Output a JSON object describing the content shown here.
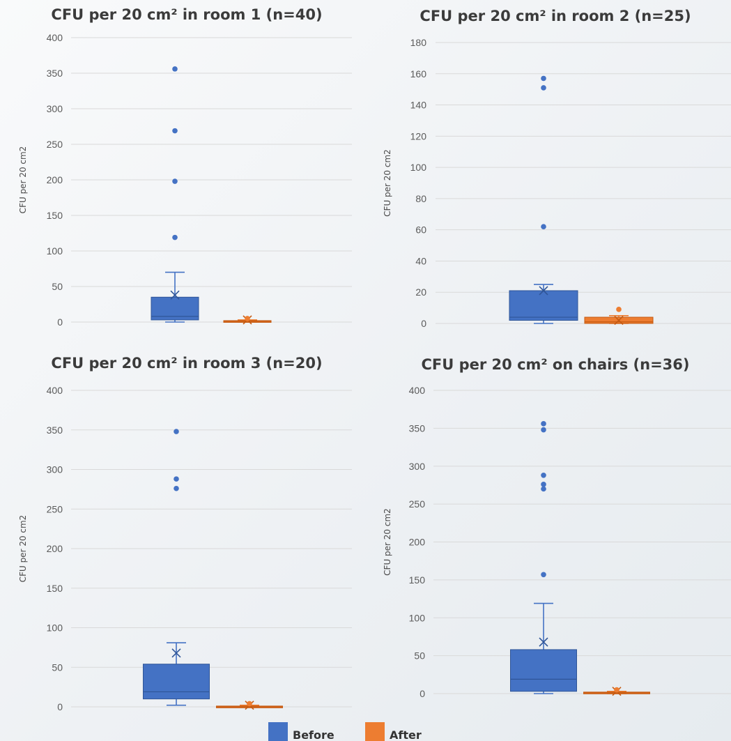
{
  "colors": {
    "before": "#4472C4",
    "after": "#ED7D31",
    "grid": "#d9d9d9",
    "outline_before": "#2F5597",
    "outline_after": "#C55A11"
  },
  "legend": {
    "before_label": "Before",
    "after_label": "After",
    "placement": "bottom-center"
  },
  "chart_data": [
    {
      "type": "box",
      "title": "CFU per 20 cm² in room 1 (n=40)",
      "ylabel": "CFU per 20 cm2",
      "ylim": [
        0,
        400
      ],
      "yticks": [
        0,
        50,
        100,
        150,
        200,
        250,
        300,
        350,
        400
      ],
      "grid": true,
      "series": [
        {
          "name": "Before",
          "min": 0,
          "q1": 3,
          "median": 8,
          "q3": 35,
          "whisker_high": 70,
          "mean": 38,
          "outliers": [
            119,
            198,
            269,
            356
          ]
        },
        {
          "name": "After",
          "min": 0,
          "q1": 0,
          "median": 1,
          "q3": 2,
          "whisker_high": 3,
          "mean": 3,
          "outliers": [
            5
          ]
        }
      ]
    },
    {
      "type": "box",
      "title": "CFU per 20 cm² in room 2 (n=25)",
      "ylabel": "CFU per 20 cm2",
      "ylim": [
        0,
        180
      ],
      "yticks": [
        0,
        20,
        40,
        60,
        80,
        100,
        120,
        140,
        160,
        180
      ],
      "grid": true,
      "series": [
        {
          "name": "Before",
          "min": 0,
          "q1": 2,
          "median": 4,
          "q3": 21,
          "whisker_high": 25,
          "mean": 21,
          "outliers": [
            62,
            151,
            157
          ]
        },
        {
          "name": "After",
          "min": 0,
          "q1": 0,
          "median": 1,
          "q3": 4,
          "whisker_high": 5,
          "mean": 2,
          "outliers": [
            9
          ]
        }
      ]
    },
    {
      "type": "box",
      "title": "CFU per 20 cm² in room 3 (n=20)",
      "ylabel": "CFU per 20 cm2",
      "ylim": [
        0,
        400
      ],
      "yticks": [
        0,
        50,
        100,
        150,
        200,
        250,
        300,
        350,
        400
      ],
      "grid": true,
      "series": [
        {
          "name": "Before",
          "min": 2,
          "q1": 10,
          "median": 19,
          "q3": 54,
          "whisker_high": 81,
          "mean": 68,
          "outliers": [
            276,
            288,
            348
          ]
        },
        {
          "name": "After",
          "min": 0,
          "q1": 0,
          "median": 0,
          "q3": 1,
          "whisker_high": 2,
          "mean": 2,
          "outliers": [
            4
          ]
        }
      ]
    },
    {
      "type": "box",
      "title": "CFU per 20 cm² on chairs (n=36)",
      "ylabel": "CFU per 20 cm2",
      "ylim": [
        0,
        400
      ],
      "yticks": [
        0,
        50,
        100,
        150,
        200,
        250,
        300,
        350,
        400
      ],
      "grid": true,
      "series": [
        {
          "name": "Before",
          "min": 0,
          "q1": 3,
          "median": 19,
          "q3": 58,
          "whisker_high": 119,
          "mean": 68,
          "outliers": [
            157,
            270,
            276,
            288,
            348,
            356
          ]
        },
        {
          "name": "After",
          "min": 0,
          "q1": 0,
          "median": 1,
          "q3": 2,
          "whisker_high": 3,
          "mean": 3,
          "outliers": [
            5
          ]
        }
      ]
    }
  ]
}
